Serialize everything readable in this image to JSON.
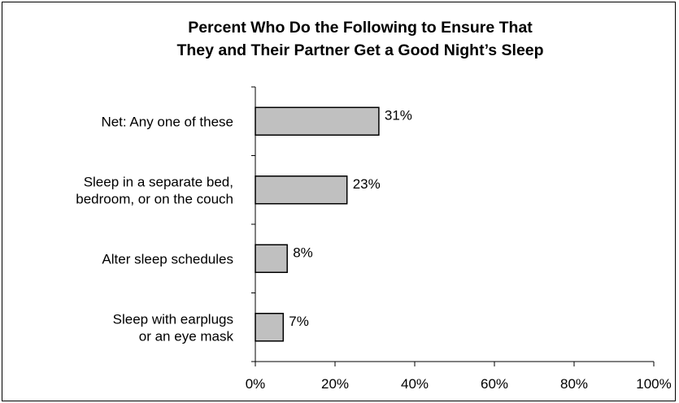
{
  "chart_data": {
    "type": "bar",
    "orientation": "horizontal",
    "title_lines": [
      "Percent Who Do the Following to Ensure That",
      "They and Their Partner Get a Good Night’s Sleep"
    ],
    "categories": [
      [
        "Net: Any one of these"
      ],
      [
        "Sleep in a separate bed,",
        "bedroom, or on the couch"
      ],
      [
        "Alter sleep schedules"
      ],
      [
        "Sleep with earplugs",
        "or an eye mask"
      ]
    ],
    "values": [
      31,
      23,
      8,
      7
    ],
    "data_labels": [
      "31%",
      "23%",
      "8%",
      "7%"
    ],
    "xlim": [
      0,
      100
    ],
    "xticks": [
      0,
      20,
      40,
      60,
      80,
      100
    ],
    "xtick_labels": [
      "0%",
      "20%",
      "40%",
      "60%",
      "80%",
      "100%"
    ],
    "grid": false,
    "bar_color": "#c0c0c0",
    "bar_edge_color": "#000000"
  }
}
